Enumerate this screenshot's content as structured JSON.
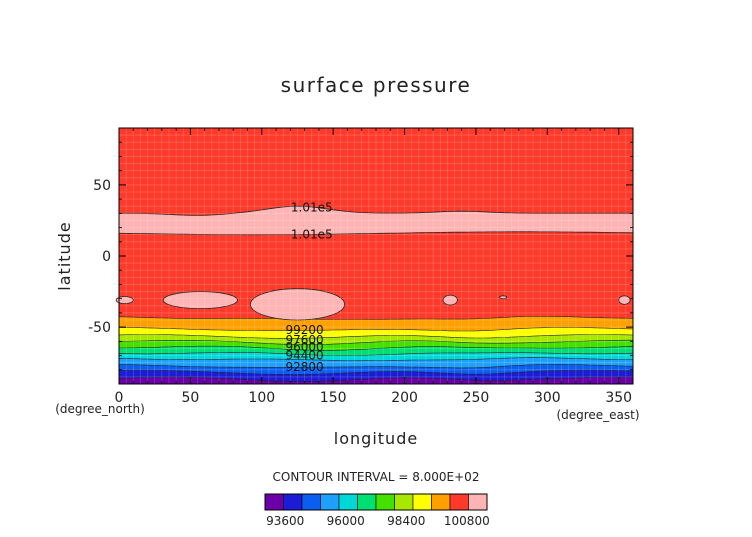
{
  "chart_data": {
    "type": "contour",
    "title": "surface pressure",
    "xlabel": "longitude",
    "ylabel": "latitude",
    "x_unit": "(degree_east)",
    "y_unit": "(degree_north)",
    "xlim": [
      0,
      360
    ],
    "ylim": [
      -90,
      90
    ],
    "x_ticks": [
      0,
      50,
      100,
      150,
      200,
      250,
      300,
      350
    ],
    "y_ticks": [
      50,
      0,
      -50
    ],
    "contour_interval_text": "CONTOUR INTERVAL = 8.000E+02",
    "contour_labels": [
      "1.01e5",
      "1.01e5",
      "99200",
      "97600",
      "96000",
      "94400",
      "92800"
    ],
    "colorbar": {
      "tick_labels": [
        "93600",
        "96000",
        "98400",
        "100800"
      ],
      "levels": [
        92800,
        93600,
        94400,
        95200,
        96000,
        96800,
        97600,
        98400,
        99200,
        100000,
        100800,
        101600
      ],
      "colors": [
        "#6b00a8",
        "#1c1cd6",
        "#0a5ef0",
        "#1ea0ff",
        "#00d8d8",
        "#00e070",
        "#44e000",
        "#a8e800",
        "#ffff00",
        "#ffa000",
        "#ff3a2a",
        "#ffb4b4"
      ]
    }
  }
}
